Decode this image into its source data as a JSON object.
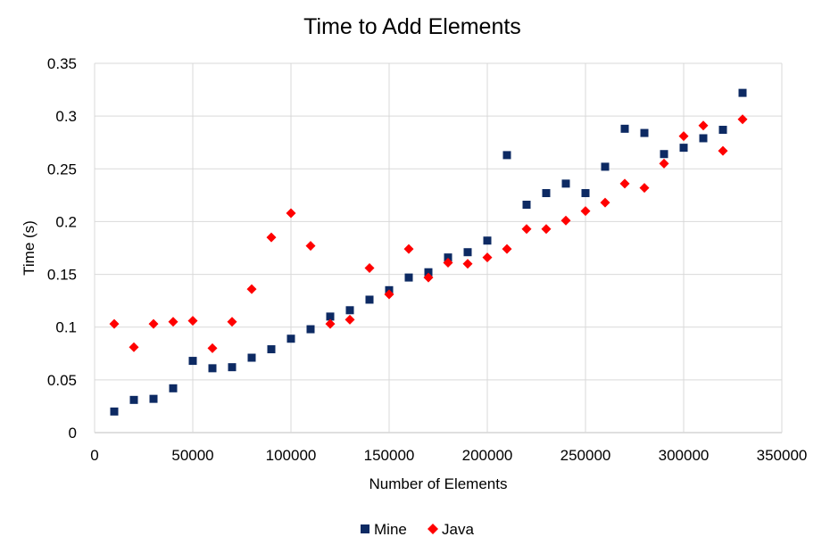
{
  "chart_data": {
    "type": "scatter",
    "title": "Time to Add Elements",
    "xlabel": "Number of Elements",
    "ylabel": "Time (s)",
    "xlim": [
      0,
      350000
    ],
    "ylim": [
      0,
      0.35
    ],
    "xticks": [
      "0",
      "50000",
      "100000",
      "150000",
      "200000",
      "250000",
      "300000",
      "350000"
    ],
    "yticks": [
      "0",
      "0.05",
      "0.1",
      "0.15",
      "0.2",
      "0.25",
      "0.3",
      "0.35"
    ],
    "grid": true,
    "legend_position": "bottom",
    "x": [
      10000,
      20000,
      30000,
      40000,
      50000,
      60000,
      70000,
      80000,
      90000,
      100000,
      110000,
      120000,
      130000,
      140000,
      150000,
      160000,
      170000,
      180000,
      190000,
      200000,
      210000,
      220000,
      230000,
      240000,
      250000,
      260000,
      270000,
      280000,
      290000,
      300000,
      310000,
      320000,
      330000
    ],
    "series": [
      {
        "name": "Mine",
        "marker": "square",
        "color": "#0d2a63",
        "values": [
          0.02,
          0.031,
          0.032,
          0.042,
          0.068,
          0.061,
          0.062,
          0.071,
          0.079,
          0.089,
          0.098,
          0.11,
          0.116,
          0.126,
          0.135,
          0.147,
          0.152,
          0.166,
          0.171,
          0.182,
          0.263,
          0.216,
          0.227,
          0.236,
          0.227,
          0.252,
          0.288,
          0.284,
          0.264,
          0.27,
          0.279,
          0.287,
          0.322
        ]
      },
      {
        "name": "Java",
        "marker": "diamond",
        "color": "#ff0000",
        "values": [
          0.103,
          0.081,
          0.103,
          0.105,
          0.106,
          0.08,
          0.105,
          0.136,
          0.185,
          0.208,
          0.177,
          0.103,
          0.107,
          0.156,
          0.131,
          0.174,
          0.147,
          0.161,
          0.16,
          0.166,
          0.174,
          0.193,
          0.193,
          0.201,
          0.21,
          0.218,
          0.236,
          0.232,
          0.255,
          0.281,
          0.291,
          0.267,
          0.297
        ]
      }
    ]
  }
}
